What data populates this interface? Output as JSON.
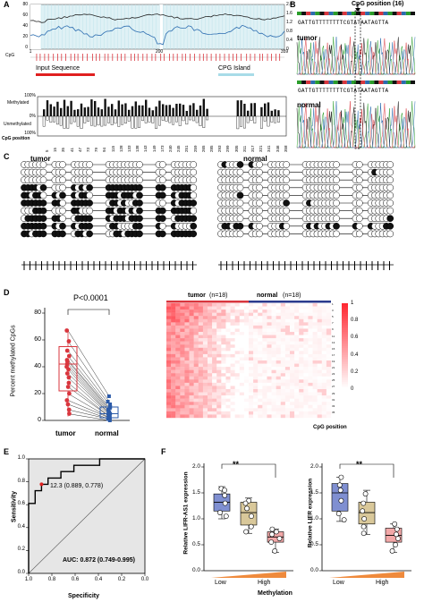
{
  "panels": {
    "A": {
      "label": "A",
      "y_ticks_left": [
        "80",
        "60",
        "40",
        "20",
        "0"
      ],
      "y_ticks_right": [
        "2.0",
        "1.6",
        "1.2",
        "0.8",
        "0.4",
        "0"
      ],
      "x_ticks": [
        "1",
        "200",
        "359"
      ],
      "cpg_label": "CpG",
      "legend_input": "Input Sequence",
      "legend_island": "CPG Island",
      "bar_y_ticks": [
        "100%",
        "0%",
        "100%"
      ],
      "methylated_label": "Methylated",
      "unmethylated_label": "Unmethylated",
      "position_label": "CpG position",
      "positions": [
        "5",
        "15",
        "35",
        "41",
        "47",
        "73",
        "79",
        "94",
        "115",
        "128",
        "133",
        "138",
        "143",
        "149",
        "173",
        "240",
        "245",
        "251",
        "259",
        "265",
        "285",
        "293",
        "299",
        "305",
        "311",
        "317",
        "321",
        "341",
        "346",
        "358"
      ]
    },
    "B": {
      "label": "B",
      "title": "CpG position (16)",
      "tumor_label": "tumor",
      "normal_label": "normal",
      "sequence": "GATTGTTTTTTTTCGTATAATAGTTA"
    },
    "C": {
      "label": "C",
      "tumor_label": "tumor",
      "normal_label": "normal"
    },
    "D": {
      "label": "D",
      "pvalue": "P<0.0001",
      "ylabel": "Percent methylated CpGs",
      "y_ticks": [
        "80",
        "60",
        "40",
        "20",
        "0"
      ],
      "groups": [
        "tumor",
        "normal"
      ],
      "heatmap_tumor": "tumor",
      "heatmap_tumor_n": "(n=18)",
      "heatmap_normal": "normal",
      "heatmap_normal_n": "(n=18)",
      "colorbar_ticks": [
        "1",
        "0.8",
        "0.6",
        "0.4",
        "0.2",
        "0"
      ],
      "heatmap_xlabel": "CpG position",
      "colors": {
        "tumor": "#d9363e",
        "normal": "#2b5aa8"
      }
    },
    "E": {
      "label": "E",
      "ylabel": "Sensitivity",
      "xlabel": "Specificity",
      "y_ticks": [
        "1.0",
        "0.8",
        "0.6",
        "0.4",
        "0.2",
        "0.0"
      ],
      "x_ticks": [
        "1.0",
        "0.8",
        "0.6",
        "0.4",
        "0.2",
        "0.0"
      ],
      "cutoff_label": "12.3 (0.889, 0.778)",
      "auc_label": "AUC: 0.872 (0.749-0.995)"
    },
    "F": {
      "label": "F",
      "sig": "**",
      "ylabel1": "Relative LIFR-AS1 expression",
      "ylabel2": "Relative LIFR expression",
      "y_ticks": [
        "2.0",
        "1.5",
        "1.0",
        "0.5",
        "0.0"
      ],
      "x_low": "Low",
      "x_high": "High",
      "xlabel": "Methylation"
    }
  },
  "chart_data": [
    {
      "type": "scatter",
      "panel": "D",
      "ylabel": "Percent methylated CpGs",
      "ylim": [
        0,
        80
      ],
      "categories": [
        "tumor",
        "normal"
      ],
      "series": [
        {
          "name": "tumor",
          "values": [
            67,
            59,
            52,
            48,
            45,
            44,
            42,
            40,
            38,
            35,
            32,
            28,
            25,
            20,
            15,
            12,
            8,
            5
          ]
        },
        {
          "name": "normal",
          "values": [
            18,
            14,
            12,
            10,
            9,
            8,
            7,
            6,
            5,
            5,
            4,
            3,
            3,
            2,
            2,
            1,
            1,
            0
          ]
        }
      ]
    },
    {
      "type": "line",
      "panel": "E",
      "xlabel": "Specificity",
      "ylabel": "Sensitivity",
      "x": [
        1.0,
        1.0,
        0.944,
        0.944,
        0.889,
        0.889,
        0.833,
        0.833,
        0.722,
        0.722,
        0.611,
        0.611,
        0.5,
        0.5,
        0.389,
        0.389,
        0.0
      ],
      "y": [
        0.0,
        0.611,
        0.611,
        0.722,
        0.722,
        0.778,
        0.778,
        0.833,
        0.833,
        0.889,
        0.889,
        0.944,
        0.944,
        0.944,
        0.944,
        1.0,
        1.0
      ]
    },
    {
      "type": "bar",
      "panel": "F",
      "ylabel": "Relative LIFR-AS1 expression",
      "categories": [
        "Low",
        "",
        "High"
      ],
      "ylim": [
        0,
        2.0
      ],
      "boxes": [
        {
          "q1": 1.15,
          "median": 1.32,
          "q3": 1.48,
          "min": 1.0,
          "max": 1.62,
          "points": [
            1.58,
            1.55,
            1.45,
            1.3,
            1.12,
            1.05
          ],
          "color": "#7f8fd1"
        },
        {
          "q1": 0.88,
          "median": 1.12,
          "q3": 1.32,
          "min": 0.72,
          "max": 1.4,
          "points": [
            1.35,
            1.3,
            1.2,
            1.05,
            0.85,
            0.75
          ],
          "color": "#d9c89a"
        },
        {
          "q1": 0.55,
          "median": 0.65,
          "q3": 0.75,
          "min": 0.35,
          "max": 0.8,
          "points": [
            0.8,
            0.75,
            0.7,
            0.62,
            0.55,
            0.38
          ],
          "color": "#f2a8a8"
        }
      ]
    },
    {
      "type": "bar",
      "panel": "F",
      "ylabel": "Relative LIFR expression",
      "categories": [
        "Low",
        "",
        "High"
      ],
      "ylim": [
        0,
        2.0
      ],
      "boxes": [
        {
          "q1": 1.15,
          "median": 1.5,
          "q3": 1.68,
          "min": 0.95,
          "max": 1.8,
          "points": [
            1.8,
            1.65,
            1.55,
            1.35,
            1.1,
            0.98
          ],
          "color": "#7f8fd1"
        },
        {
          "q1": 0.9,
          "median": 1.12,
          "q3": 1.32,
          "min": 0.7,
          "max": 1.55,
          "points": [
            1.48,
            1.3,
            1.15,
            1.0,
            0.85,
            0.72
          ],
          "color": "#d9c89a"
        },
        {
          "q1": 0.55,
          "median": 0.68,
          "q3": 0.82,
          "min": 0.35,
          "max": 0.9,
          "points": [
            0.9,
            0.8,
            0.7,
            0.62,
            0.5,
            0.38
          ],
          "color": "#f2a8a8"
        }
      ]
    }
  ]
}
